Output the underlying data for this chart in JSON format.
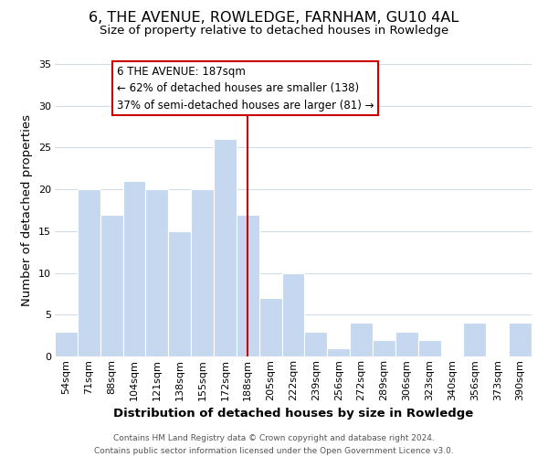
{
  "title": "6, THE AVENUE, ROWLEDGE, FARNHAM, GU10 4AL",
  "subtitle": "Size of property relative to detached houses in Rowledge",
  "xlabel": "Distribution of detached houses by size in Rowledge",
  "ylabel": "Number of detached properties",
  "categories": [
    "54sqm",
    "71sqm",
    "88sqm",
    "104sqm",
    "121sqm",
    "138sqm",
    "155sqm",
    "172sqm",
    "188sqm",
    "205sqm",
    "222sqm",
    "239sqm",
    "256sqm",
    "272sqm",
    "289sqm",
    "306sqm",
    "323sqm",
    "340sqm",
    "356sqm",
    "373sqm",
    "390sqm"
  ],
  "values": [
    3,
    20,
    17,
    21,
    20,
    15,
    20,
    26,
    17,
    7,
    10,
    3,
    1,
    4,
    2,
    3,
    2,
    0,
    4,
    0,
    4
  ],
  "bar_color": "#c5d8f0",
  "bar_edge_color": "#ffffff",
  "highlight_index": 8,
  "highlight_line_color": "#cc0000",
  "ylim": [
    0,
    35
  ],
  "yticks": [
    0,
    5,
    10,
    15,
    20,
    25,
    30,
    35
  ],
  "annotation_title": "6 THE AVENUE: 187sqm",
  "annotation_line1": "← 62% of detached houses are smaller (138)",
  "annotation_line2": "37% of semi-detached houses are larger (81) →",
  "annotation_box_color": "#ffffff",
  "annotation_box_edge_color": "#cc0000",
  "footer_line1": "Contains HM Land Registry data © Crown copyright and database right 2024.",
  "footer_line2": "Contains public sector information licensed under the Open Government Licence v3.0.",
  "background_color": "#ffffff",
  "grid_color": "#d0dde8",
  "title_fontsize": 11.5,
  "subtitle_fontsize": 9.5,
  "axis_label_fontsize": 9.5,
  "tick_fontsize": 8,
  "annotation_fontsize": 8.5,
  "footer_fontsize": 6.5
}
